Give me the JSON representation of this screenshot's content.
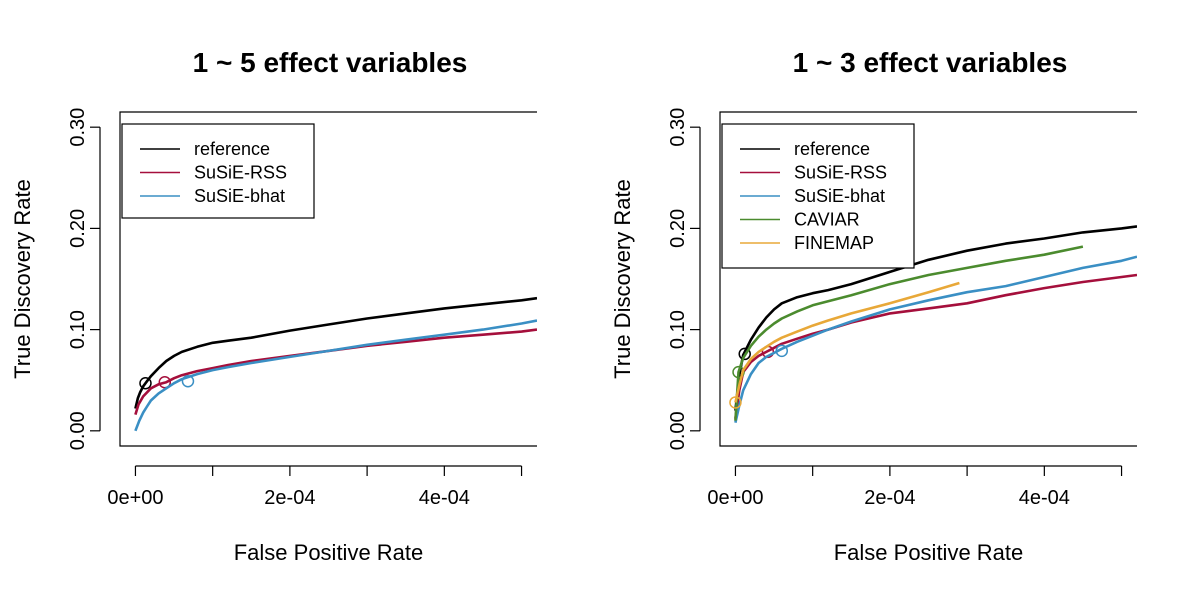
{
  "chart_data": [
    {
      "type": "line",
      "title": "1 ~ 5 effect variables",
      "xlabel": "False Positive Rate",
      "ylabel": "True Discovery Rate",
      "xlim": [
        -2e-05,
        0.00052
      ],
      "ylim": [
        -0.015,
        0.315
      ],
      "xticks": [
        0,
        0.0001,
        0.0002,
        0.0003,
        0.0004,
        0.0005
      ],
      "xtick_labels": [
        "0e+00",
        "",
        "2e-04",
        "",
        "4e-04",
        ""
      ],
      "yticks": [
        0,
        0.1,
        0.2,
        0.3
      ],
      "ytick_labels": [
        "0.00",
        "0.10",
        "0.20",
        "0.30"
      ],
      "grid": false,
      "legend_position": "top-left",
      "series": [
        {
          "name": "reference",
          "color": "#000000",
          "marker": [
            1.3e-05,
            0.047
          ],
          "x": [
            0,
            3e-06,
            6e-06,
            1e-05,
            1.5e-05,
            2e-05,
            3e-05,
            4e-05,
            5e-05,
            6e-05,
            8e-05,
            0.0001,
            0.00012,
            0.00015,
            0.0002,
            0.00025,
            0.0003,
            0.00035,
            0.0004,
            0.00045,
            0.0005,
            0.00052
          ],
          "y": [
            0.022,
            0.032,
            0.038,
            0.044,
            0.049,
            0.054,
            0.062,
            0.069,
            0.074,
            0.078,
            0.083,
            0.087,
            0.089,
            0.092,
            0.099,
            0.105,
            0.111,
            0.116,
            0.121,
            0.125,
            0.129,
            0.131
          ]
        },
        {
          "name": "SuSiE-RSS",
          "color": "#A50F3C",
          "marker": [
            3.8e-05,
            0.048
          ],
          "x": [
            0,
            4e-06,
            1e-05,
            2e-05,
            3e-05,
            4e-05,
            5e-05,
            6e-05,
            8e-05,
            0.0001,
            0.00012,
            0.00015,
            0.0002,
            0.00025,
            0.0003,
            0.00035,
            0.0004,
            0.00045,
            0.0005,
            0.00052
          ],
          "y": [
            0.016,
            0.026,
            0.034,
            0.042,
            0.046,
            0.048,
            0.052,
            0.055,
            0.059,
            0.062,
            0.065,
            0.069,
            0.074,
            0.079,
            0.084,
            0.088,
            0.092,
            0.095,
            0.098,
            0.1
          ]
        },
        {
          "name": "SuSiE-bhat",
          "color": "#3A8FC4",
          "marker": [
            6.8e-05,
            0.049
          ],
          "x": [
            0,
            5e-06,
            1e-05,
            1.5e-05,
            2e-05,
            3e-05,
            4e-05,
            5e-05,
            6e-05,
            8e-05,
            0.0001,
            0.00012,
            0.00015,
            0.0002,
            0.00025,
            0.0003,
            0.00035,
            0.0004,
            0.00045,
            0.0005,
            0.00052
          ],
          "y": [
            0,
            0.01,
            0.018,
            0.024,
            0.03,
            0.037,
            0.042,
            0.047,
            0.051,
            0.056,
            0.06,
            0.063,
            0.067,
            0.073,
            0.079,
            0.085,
            0.09,
            0.095,
            0.1,
            0.106,
            0.109
          ]
        }
      ]
    },
    {
      "type": "line",
      "title": "1 ~ 3 effect variables",
      "xlabel": "False Positive Rate",
      "ylabel": "True Discovery Rate",
      "xlim": [
        -2e-05,
        0.00052
      ],
      "ylim": [
        -0.015,
        0.315
      ],
      "xticks": [
        0,
        0.0001,
        0.0002,
        0.0003,
        0.0004,
        0.0005
      ],
      "xtick_labels": [
        "0e+00",
        "",
        "2e-04",
        "",
        "4e-04",
        ""
      ],
      "yticks": [
        0,
        0.1,
        0.2,
        0.3
      ],
      "ytick_labels": [
        "0.00",
        "0.10",
        "0.20",
        "0.30"
      ],
      "grid": false,
      "legend_position": "top-left",
      "series": [
        {
          "name": "reference",
          "color": "#000000",
          "marker": [
            1.2e-05,
            0.076
          ],
          "x": [
            0,
            5e-06,
            1e-05,
            2e-05,
            3e-05,
            4e-05,
            5e-05,
            6e-05,
            8e-05,
            0.0001,
            0.00012,
            0.00015,
            0.0002,
            0.00025,
            0.0003,
            0.00035,
            0.0004,
            0.00045,
            0.0005,
            0.00052
          ],
          "y": [
            0.02,
            0.055,
            0.075,
            0.09,
            0.102,
            0.112,
            0.12,
            0.126,
            0.132,
            0.136,
            0.139,
            0.145,
            0.157,
            0.169,
            0.178,
            0.185,
            0.19,
            0.196,
            0.2,
            0.202
          ]
        },
        {
          "name": "SuSiE-RSS",
          "color": "#A50F3C",
          "marker": [
            4.2e-05,
            0.078
          ],
          "x": [
            0,
            5e-06,
            1e-05,
            2e-05,
            3e-05,
            4e-05,
            5e-05,
            6e-05,
            8e-05,
            0.0001,
            0.00012,
            0.00015,
            0.0002,
            0.00025,
            0.0003,
            0.00035,
            0.0004,
            0.00045,
            0.0005,
            0.00052
          ],
          "y": [
            0.012,
            0.04,
            0.058,
            0.068,
            0.074,
            0.078,
            0.082,
            0.086,
            0.091,
            0.096,
            0.1,
            0.107,
            0.116,
            0.121,
            0.126,
            0.134,
            0.141,
            0.147,
            0.152,
            0.154
          ]
        },
        {
          "name": "SuSiE-bhat",
          "color": "#3A8FC4",
          "marker": [
            6e-05,
            0.079
          ],
          "x": [
            0,
            5e-06,
            1e-05,
            2e-05,
            3e-05,
            4e-05,
            5e-05,
            6e-05,
            8e-05,
            0.0001,
            0.00012,
            0.00015,
            0.0002,
            0.00025,
            0.0003,
            0.00035,
            0.0004,
            0.00045,
            0.0005,
            0.00052
          ],
          "y": [
            0.008,
            0.025,
            0.04,
            0.056,
            0.067,
            0.073,
            0.077,
            0.081,
            0.088,
            0.094,
            0.1,
            0.108,
            0.12,
            0.129,
            0.137,
            0.143,
            0.152,
            0.161,
            0.168,
            0.172
          ]
        },
        {
          "name": "CAVIAR",
          "color": "#4B8B2E",
          "marker": [
            4e-06,
            0.058
          ],
          "x": [
            0,
            4e-06,
            1e-05,
            2e-05,
            3e-05,
            4e-05,
            5e-05,
            6e-05,
            8e-05,
            0.0001,
            0.00012,
            0.00015,
            0.0002,
            0.00025,
            0.0003,
            0.00035,
            0.0004,
            0.00045
          ],
          "y": [
            0.01,
            0.058,
            0.072,
            0.084,
            0.093,
            0.1,
            0.106,
            0.111,
            0.118,
            0.124,
            0.128,
            0.134,
            0.145,
            0.154,
            0.161,
            0.168,
            0.174,
            0.182
          ]
        },
        {
          "name": "FINEMAP",
          "color": "#E8A838",
          "marker": [
            0,
            0.028
          ],
          "x": [
            0,
            5e-06,
            1e-05,
            2e-05,
            3e-05,
            4e-05,
            5e-05,
            6e-05,
            8e-05,
            0.0001,
            0.00012,
            0.00015,
            0.0002,
            0.00025,
            0.00029
          ],
          "y": [
            0.028,
            0.045,
            0.06,
            0.071,
            0.078,
            0.083,
            0.088,
            0.092,
            0.098,
            0.104,
            0.109,
            0.116,
            0.126,
            0.137,
            0.146
          ]
        }
      ]
    }
  ]
}
